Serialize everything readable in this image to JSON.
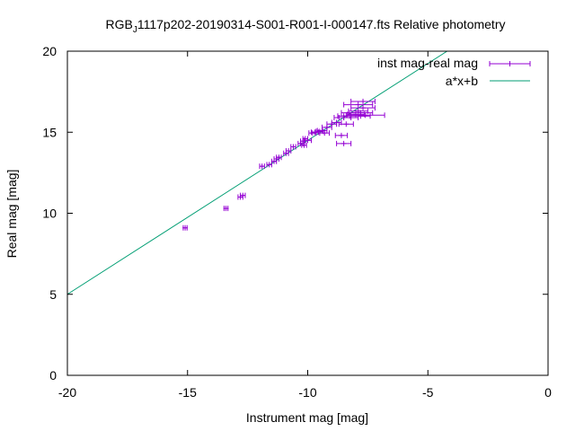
{
  "chart_data": {
    "type": "scatter",
    "title_prefix": "RGB",
    "title_subscript": "J",
    "title_rest": "1117p202-20190314-S001-R001-I-000147.fts Relative photometry",
    "xlabel": "Instrument mag [mag]",
    "ylabel": "Real mag [mag]",
    "xlim": [
      -20,
      0
    ],
    "ylim": [
      0,
      20
    ],
    "xticks": [
      -20,
      -15,
      -10,
      -5,
      0
    ],
    "yticks": [
      0,
      5,
      10,
      15,
      20
    ],
    "grid": false,
    "legend_position": "top-right",
    "series": [
      {
        "name": "inst mag-real mag",
        "kind": "errorbars",
        "color": "#9400d3",
        "points": [
          {
            "x": -15.1,
            "y": 9.1,
            "xerr": 0.08
          },
          {
            "x": -13.4,
            "y": 10.3,
            "xerr": 0.08
          },
          {
            "x": -12.8,
            "y": 11.0,
            "xerr": 0.1
          },
          {
            "x": -12.7,
            "y": 11.1,
            "xerr": 0.1
          },
          {
            "x": -11.9,
            "y": 12.9,
            "xerr": 0.1
          },
          {
            "x": -11.6,
            "y": 13.0,
            "xerr": 0.1
          },
          {
            "x": -11.4,
            "y": 13.2,
            "xerr": 0.1
          },
          {
            "x": -11.3,
            "y": 13.35,
            "xerr": 0.1
          },
          {
            "x": -11.2,
            "y": 13.45,
            "xerr": 0.1
          },
          {
            "x": -10.9,
            "y": 13.7,
            "xerr": 0.1
          },
          {
            "x": -10.8,
            "y": 13.85,
            "xerr": 0.1
          },
          {
            "x": -10.6,
            "y": 14.1,
            "xerr": 0.1
          },
          {
            "x": -10.3,
            "y": 14.3,
            "xerr": 0.1
          },
          {
            "x": -10.2,
            "y": 14.45,
            "xerr": 0.1
          },
          {
            "x": -10.15,
            "y": 14.2,
            "xerr": 0.1
          },
          {
            "x": -10.1,
            "y": 14.6,
            "xerr": 0.1
          },
          {
            "x": -10.0,
            "y": 14.5,
            "xerr": 0.15
          },
          {
            "x": -9.8,
            "y": 14.95,
            "xerr": 0.15
          },
          {
            "x": -9.7,
            "y": 15.0,
            "xerr": 0.15
          },
          {
            "x": -9.5,
            "y": 15.05,
            "xerr": 0.15
          },
          {
            "x": -9.4,
            "y": 15.1,
            "xerr": 0.2
          },
          {
            "x": -9.3,
            "y": 14.95,
            "xerr": 0.2
          },
          {
            "x": -9.2,
            "y": 15.3,
            "xerr": 0.2
          },
          {
            "x": -9.0,
            "y": 15.5,
            "xerr": 0.2
          },
          {
            "x": -8.8,
            "y": 15.6,
            "xerr": 0.2
          },
          {
            "x": -8.7,
            "y": 15.9,
            "xerr": 0.2
          },
          {
            "x": -8.5,
            "y": 16.0,
            "xerr": 0.25
          },
          {
            "x": -8.6,
            "y": 14.8,
            "xerr": 0.25
          },
          {
            "x": -8.5,
            "y": 14.3,
            "xerr": 0.3
          },
          {
            "x": -8.4,
            "y": 15.5,
            "xerr": 0.3
          },
          {
            "x": -8.3,
            "y": 16.2,
            "xerr": 0.3
          },
          {
            "x": -8.2,
            "y": 15.9,
            "xerr": 0.3
          },
          {
            "x": -8.0,
            "y": 16.1,
            "xerr": 0.35
          },
          {
            "x": -7.9,
            "y": 16.3,
            "xerr": 0.4
          },
          {
            "x": -7.8,
            "y": 16.0,
            "xerr": 0.4
          },
          {
            "x": -7.7,
            "y": 16.5,
            "xerr": 0.5
          },
          {
            "x": -7.8,
            "y": 16.2,
            "xerr": 0.5
          },
          {
            "x": -7.9,
            "y": 16.7,
            "xerr": 0.6
          },
          {
            "x": -7.6,
            "y": 16.05,
            "xerr": 0.8
          },
          {
            "x": -7.7,
            "y": 16.9,
            "xerr": 0.5
          }
        ]
      },
      {
        "name": "a*x+b",
        "kind": "line",
        "color": "#009e73",
        "points": [
          {
            "x": -20,
            "y": 5.0
          },
          {
            "x": -4.2,
            "y": 20.0
          }
        ]
      }
    ]
  }
}
